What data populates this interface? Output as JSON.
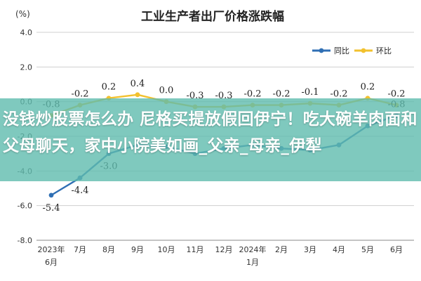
{
  "chart_data": {
    "type": "line",
    "title": "工业生产者出厂价格涨跌幅",
    "ylabel": "(%)",
    "ylim": [
      -8.0,
      4.0
    ],
    "yticks": [
      "4.0",
      "2.0",
      "0.0",
      "-2.0",
      "-4.0",
      "-6.0",
      "-8.0"
    ],
    "ytick_values": [
      4,
      2,
      0,
      -2,
      -4,
      -6,
      -8
    ],
    "categories": [
      {
        "line1": "2023年",
        "line2": "6月"
      },
      {
        "line1": "7月",
        "line2": ""
      },
      {
        "line1": "8月",
        "line2": ""
      },
      {
        "line1": "9月",
        "line2": ""
      },
      {
        "line1": "10月",
        "line2": ""
      },
      {
        "line1": "11月",
        "line2": ""
      },
      {
        "line1": "12月",
        "line2": ""
      },
      {
        "line1": "2024年",
        "line2": "1月"
      },
      {
        "line1": "2月",
        "line2": ""
      },
      {
        "line1": "3月",
        "line2": ""
      },
      {
        "line1": "4月",
        "line2": ""
      },
      {
        "line1": "5月",
        "line2": ""
      },
      {
        "line1": "6月",
        "line2": ""
      }
    ],
    "legend_position": "top-right",
    "grid": true,
    "series": [
      {
        "name": "同比",
        "color": "#2f6fb4",
        "values": [
          -5.4,
          -4.4,
          -3.0,
          -2.5,
          -2.6,
          -3.0,
          -2.7,
          -2.5,
          -2.7,
          -2.8,
          -2.5,
          -1.4,
          -0.8
        ],
        "labels": [
          "-5.4",
          "-4.4",
          "-3.0",
          "",
          "",
          "",
          "",
          "",
          "",
          "",
          "",
          "",
          "-0.8"
        ]
      },
      {
        "name": "环比",
        "color": "#f2c12e",
        "values": [
          -0.8,
          -0.2,
          0.2,
          0.4,
          0.0,
          -0.3,
          -0.3,
          -0.2,
          -0.2,
          -0.1,
          -0.2,
          0.2,
          -0.2
        ],
        "labels": [
          "-0.8",
          "-0.2",
          "0.2",
          "0.4",
          "0.0",
          "-0.3",
          "-0.3",
          "-0.2",
          "-0.2",
          "-0.1",
          "-0.2",
          "0.2",
          "-0.2"
        ]
      }
    ]
  },
  "overlay": {
    "text": "没钱炒股票怎么办 尼格买提放假回伊宁！吃大碗羊肉面和父母聊天，家中小院美如画_父亲_母亲_伊犁"
  }
}
